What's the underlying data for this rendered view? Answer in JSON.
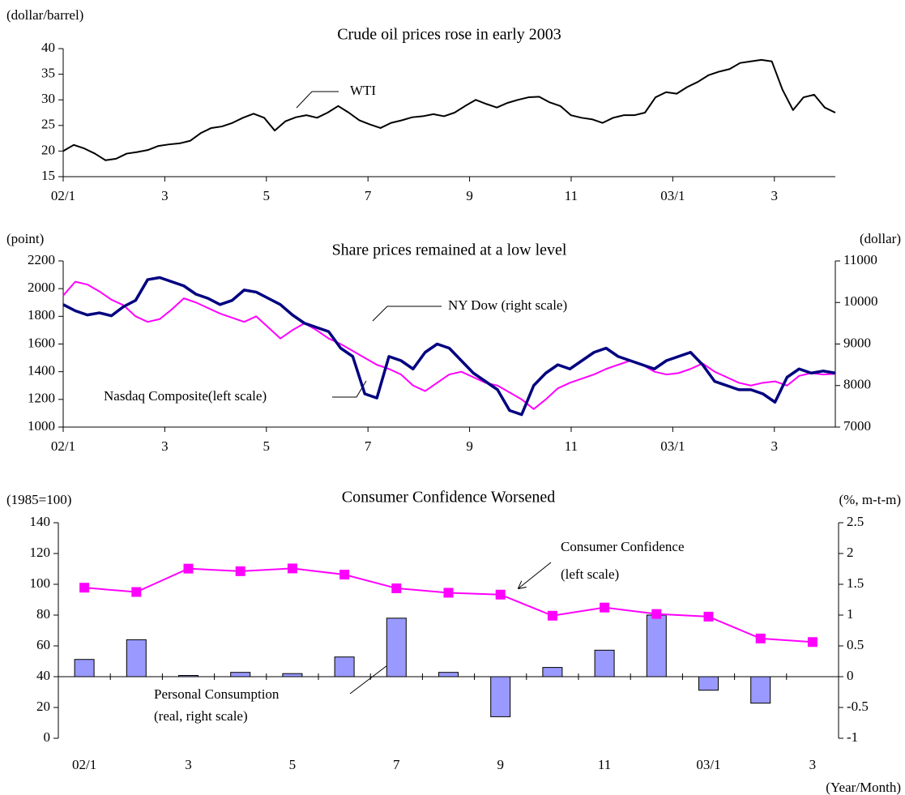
{
  "chart_data": [
    {
      "type": "line",
      "title": "Crude oil prices rose in early 2003",
      "y_label": "(dollar/barrel)",
      "xlim": [
        0,
        15.2
      ],
      "xticks": [
        {
          "value": 0,
          "label": "02/1"
        },
        {
          "value": 2,
          "label": "3"
        },
        {
          "value": 4,
          "label": "5"
        },
        {
          "value": 6,
          "label": "7"
        },
        {
          "value": 8,
          "label": "9"
        },
        {
          "value": 10,
          "label": "11"
        },
        {
          "value": 12,
          "label": "03/1"
        },
        {
          "value": 14,
          "label": "3"
        }
      ],
      "ylim": [
        15,
        40
      ],
      "yticks": [
        15,
        20,
        25,
        30,
        35,
        40
      ],
      "annotations": [
        "WTI"
      ],
      "series": [
        {
          "name": "WTI",
          "color": "#000000",
          "values": [
            20,
            21.2,
            20.5,
            19.5,
            18.2,
            18.5,
            19.5,
            19.8,
            20.2,
            21,
            21.3,
            21.5,
            22,
            23.5,
            24.5,
            24.8,
            25.5,
            26.5,
            27.3,
            26.5,
            24,
            25.8,
            26.6,
            27,
            26.5,
            27.5,
            28.8,
            27.5,
            26,
            25.2,
            24.5,
            25.5,
            26,
            26.6,
            26.8,
            27.2,
            26.8,
            27.5,
            28.8,
            30,
            29.2,
            28.5,
            29.4,
            30,
            30.5,
            30.6,
            29.5,
            28.8,
            27,
            26.5,
            26.2,
            25.5,
            26.5,
            27,
            27,
            27.5,
            30.5,
            31.5,
            31.2,
            32.5,
            33.5,
            34.8,
            35.5,
            36,
            37.2,
            37.5,
            37.8,
            37.5,
            32,
            28,
            30.5,
            31,
            28.5,
            27.5
          ]
        }
      ]
    },
    {
      "type": "line",
      "title": "Share prices remained at a low level",
      "y_label": "(point)",
      "y2_label": "(dollar)",
      "xlim": [
        0,
        15.2
      ],
      "xticks": [
        {
          "value": 0,
          "label": "02/1"
        },
        {
          "value": 2,
          "label": "3"
        },
        {
          "value": 4,
          "label": "5"
        },
        {
          "value": 6,
          "label": "7"
        },
        {
          "value": 8,
          "label": "9"
        },
        {
          "value": 10,
          "label": "11"
        },
        {
          "value": 12,
          "label": "03/1"
        },
        {
          "value": 14,
          "label": "3"
        }
      ],
      "ylim": [
        1000,
        2200
      ],
      "yticks": [
        1000,
        1200,
        1400,
        1600,
        1800,
        2000,
        2200
      ],
      "y2lim": [
        7000,
        11000
      ],
      "y2ticks": [
        7000,
        8000,
        9000,
        10000,
        11000
      ],
      "annotations": [
        "NY Dow (right scale)",
        "Nasdaq Composite(left scale)"
      ],
      "series": [
        {
          "name": "Nasdaq Composite",
          "color": "#ff00ff",
          "values": [
            1950,
            2050,
            2030,
            1980,
            1920,
            1880,
            1800,
            1760,
            1780,
            1850,
            1930,
            1900,
            1860,
            1820,
            1790,
            1760,
            1800,
            1720,
            1640,
            1700,
            1750,
            1700,
            1640,
            1600,
            1550,
            1500,
            1450,
            1420,
            1380,
            1300,
            1260,
            1320,
            1380,
            1400,
            1360,
            1320,
            1300,
            1250,
            1200,
            1130,
            1200,
            1280,
            1320,
            1350,
            1380,
            1420,
            1450,
            1480,
            1450,
            1400,
            1380,
            1390,
            1420,
            1460,
            1400,
            1360,
            1320,
            1300,
            1320,
            1330,
            1300,
            1370,
            1390,
            1380,
            1385
          ]
        },
        {
          "name": "NY Dow",
          "color": "#000080",
          "axis": "y2",
          "values": [
            9950,
            9800,
            9700,
            9750,
            9680,
            9900,
            10050,
            10550,
            10600,
            10500,
            10400,
            10200,
            10100,
            9950,
            10050,
            10300,
            10250,
            10100,
            9950,
            9700,
            9500,
            9400,
            9300,
            8900,
            8700,
            7800,
            7700,
            8700,
            8600,
            8400,
            8800,
            9000,
            8900,
            8600,
            8300,
            8100,
            7900,
            7400,
            7300,
            8000,
            8300,
            8500,
            8400,
            8600,
            8800,
            8900,
            8700,
            8600,
            8500,
            8400,
            8600,
            8700,
            8800,
            8500,
            8100,
            8000,
            7900,
            7900,
            7800,
            7600,
            8200,
            8400,
            8300,
            8350,
            8300
          ]
        }
      ]
    },
    {
      "type": "combo",
      "title": "Consumer Confidence Worsened",
      "y_label": "(1985=100)",
      "y2_label": "(%, m-t-m)",
      "x_label": "(Year/Month)",
      "categories": [
        "02/1",
        null,
        "3",
        null,
        "5",
        null,
        "7",
        null,
        "9",
        null,
        "11",
        null,
        "03/1",
        null,
        "3"
      ],
      "ylim": [
        0,
        140
      ],
      "yticks": [
        0,
        20,
        40,
        60,
        80,
        100,
        120,
        140
      ],
      "y2lim": [
        -1,
        2.5
      ],
      "y2ticks": [
        -1,
        -0.5,
        0,
        0.5,
        1,
        1.5,
        2,
        2.5
      ],
      "annotations": [
        "Consumer Confidence",
        "(left scale)",
        "Personal Consumption",
        "(real, right scale)"
      ],
      "series": [
        {
          "name": "Personal Consumption",
          "color": "#9999ff",
          "axis": "y2",
          "kind": "bar",
          "values": [
            0.28,
            0.6,
            0.02,
            0.07,
            0.05,
            0.32,
            0.95,
            0.07,
            -0.65,
            0.15,
            0.43,
            1.0,
            -0.22,
            -0.43,
            null
          ]
        },
        {
          "name": "Consumer Confidence",
          "color": "#ff00ff",
          "kind": "line",
          "values": [
            97.8,
            95,
            110.2,
            108.5,
            110.3,
            106.3,
            97.4,
            94.5,
            93.3,
            79.6,
            84.9,
            80.7,
            79,
            64.8,
            62.5
          ]
        }
      ]
    }
  ]
}
